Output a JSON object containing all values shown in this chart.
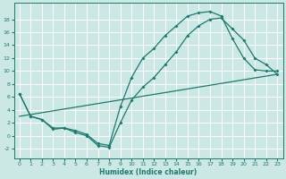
{
  "xlabel": "Humidex (Indice chaleur)",
  "bg_color": "#cce8e4",
  "line_color": "#1a7a6e",
  "grid_color": "#ffffff",
  "xlim": [
    -0.5,
    23.5
  ],
  "ylim": [
    -3.5,
    20.5
  ],
  "xticks": [
    0,
    1,
    2,
    3,
    4,
    5,
    6,
    7,
    8,
    9,
    10,
    11,
    12,
    13,
    14,
    15,
    16,
    17,
    18,
    19,
    20,
    21,
    22,
    23
  ],
  "yticks": [
    -2,
    0,
    2,
    4,
    6,
    8,
    10,
    12,
    14,
    16,
    18
  ],
  "curve_upper_x": [
    0,
    1,
    2,
    3,
    4,
    5,
    6,
    7,
    8,
    9,
    10,
    11,
    12,
    13,
    14,
    15,
    16,
    17,
    18,
    19,
    20,
    21,
    22,
    23
  ],
  "curve_upper_y": [
    6.5,
    3.0,
    2.5,
    1.2,
    1.2,
    0.8,
    0.2,
    -1.2,
    -1.5,
    4.5,
    9.0,
    12.0,
    13.5,
    15.5,
    17.0,
    18.5,
    19.0,
    19.2,
    18.5,
    15.0,
    12.0,
    10.2,
    10.0,
    10.0
  ],
  "curve_lower_x": [
    0,
    1,
    2,
    3,
    4,
    5,
    6,
    7,
    8,
    9,
    10,
    11,
    12,
    13,
    14,
    15,
    16,
    17,
    18,
    19,
    20,
    21,
    22,
    23
  ],
  "curve_lower_y": [
    6.5,
    3.0,
    2.5,
    1.0,
    1.2,
    0.5,
    0.0,
    -1.5,
    -1.8,
    2.0,
    5.5,
    7.5,
    9.0,
    11.0,
    13.0,
    15.5,
    17.0,
    18.0,
    18.2,
    16.5,
    14.8,
    12.0,
    11.0,
    9.5
  ],
  "line_x": [
    0,
    23
  ],
  "line_y": [
    3.0,
    9.5
  ]
}
